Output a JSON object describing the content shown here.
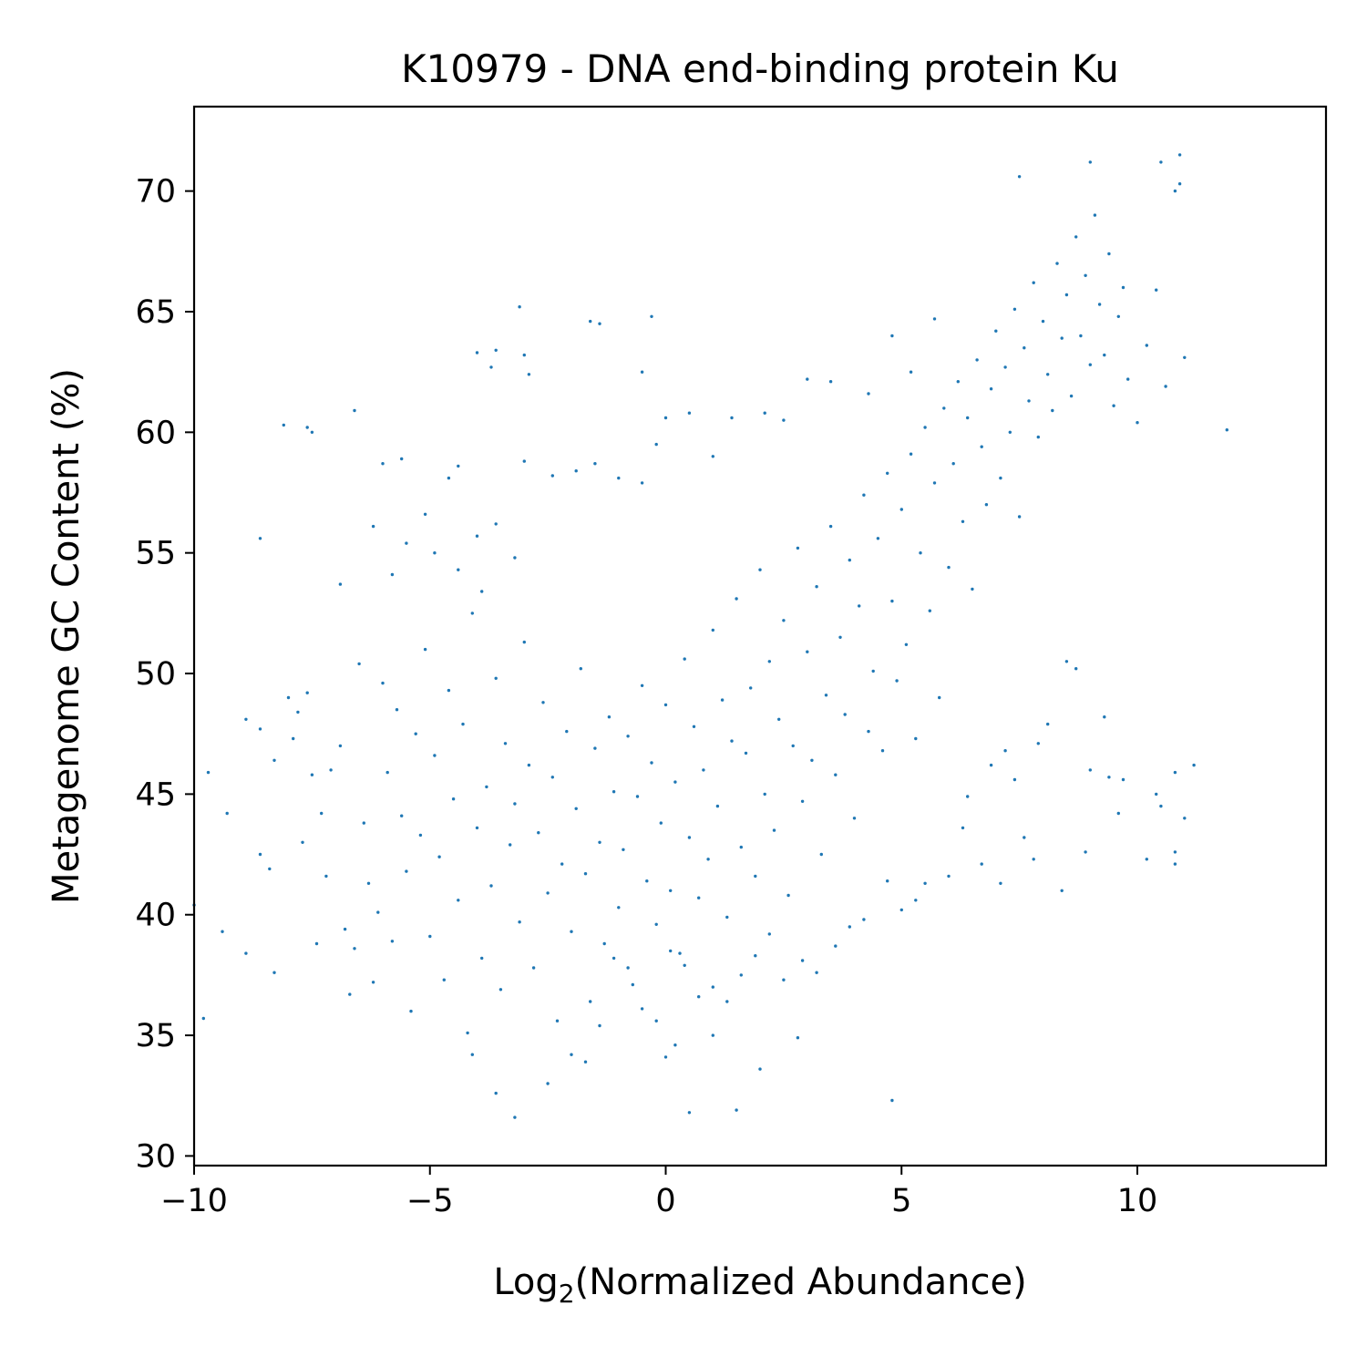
{
  "chart_data": {
    "type": "scatter",
    "title": "K10979 - DNA end-binding protein Ku",
    "xlabel_main": "Log",
    "xlabel_sub": "2",
    "xlabel_rest": "(Normalized Abundance)",
    "ylabel": "Metagenome GC Content (%)",
    "xlim": [
      -10,
      14
    ],
    "ylim": [
      29.6,
      73.5
    ],
    "xticks": [
      -10,
      -5,
      0,
      5,
      10
    ],
    "xtick_labels": [
      "−10",
      "−5",
      "0",
      "5",
      "10"
    ],
    "yticks": [
      30,
      35,
      40,
      45,
      50,
      55,
      60,
      65,
      70
    ],
    "ytick_labels": [
      "30",
      "35",
      "40",
      "45",
      "50",
      "55",
      "60",
      "65",
      "70"
    ],
    "marker_color": "#1f77b4",
    "grid": false,
    "legend": "none",
    "points": [
      [
        -9.8,
        35.7
      ],
      [
        -10.0,
        40.4
      ],
      [
        -9.7,
        45.9
      ],
      [
        -9.4,
        39.3
      ],
      [
        -9.3,
        44.2
      ],
      [
        -8.9,
        38.4
      ],
      [
        -8.9,
        48.1
      ],
      [
        -8.6,
        47.7
      ],
      [
        -8.6,
        42.5
      ],
      [
        -8.4,
        41.9
      ],
      [
        -8.3,
        37.6
      ],
      [
        -8.3,
        46.4
      ],
      [
        -8.0,
        49.0
      ],
      [
        -7.9,
        47.3
      ],
      [
        -7.8,
        48.4
      ],
      [
        -7.7,
        43.0
      ],
      [
        -7.6,
        49.2
      ],
      [
        -7.5,
        45.8
      ],
      [
        -7.4,
        38.8
      ],
      [
        -7.3,
        44.2
      ],
      [
        -7.2,
        41.6
      ],
      [
        -7.1,
        46.0
      ],
      [
        -6.9,
        47.0
      ],
      [
        -6.8,
        39.4
      ],
      [
        -6.7,
        36.7
      ],
      [
        -6.6,
        38.6
      ],
      [
        -6.5,
        50.4
      ],
      [
        -6.4,
        43.8
      ],
      [
        -6.3,
        41.3
      ],
      [
        -6.2,
        37.2
      ],
      [
        -6.1,
        40.1
      ],
      [
        -6.0,
        49.6
      ],
      [
        -5.9,
        45.9
      ],
      [
        -5.8,
        38.9
      ],
      [
        -5.7,
        48.5
      ],
      [
        -5.6,
        44.1
      ],
      [
        -5.5,
        41.8
      ],
      [
        -5.4,
        36.0
      ],
      [
        -5.3,
        47.5
      ],
      [
        -5.2,
        43.3
      ],
      [
        -5.1,
        51.0
      ],
      [
        -5.0,
        39.1
      ],
      [
        -4.9,
        46.6
      ],
      [
        -4.8,
        42.4
      ],
      [
        -4.7,
        37.3
      ],
      [
        -4.6,
        49.3
      ],
      [
        -4.5,
        44.8
      ],
      [
        -4.4,
        40.6
      ],
      [
        -4.3,
        47.9
      ],
      [
        -4.2,
        35.1
      ],
      [
        -4.1,
        52.5
      ],
      [
        -4.0,
        43.6
      ],
      [
        -3.9,
        38.2
      ],
      [
        -3.8,
        45.3
      ],
      [
        -3.7,
        41.2
      ],
      [
        -3.6,
        49.8
      ],
      [
        -3.5,
        36.9
      ],
      [
        -3.4,
        47.1
      ],
      [
        -3.3,
        42.9
      ],
      [
        -3.2,
        44.6
      ],
      [
        -3.1,
        39.7
      ],
      [
        -3.0,
        51.3
      ],
      [
        -2.9,
        46.2
      ],
      [
        -2.8,
        37.8
      ],
      [
        -2.7,
        43.4
      ],
      [
        -2.6,
        48.8
      ],
      [
        -2.5,
        40.9
      ],
      [
        -2.4,
        45.7
      ],
      [
        -2.3,
        35.6
      ],
      [
        -2.2,
        42.1
      ],
      [
        -2.1,
        47.6
      ],
      [
        -2.0,
        39.3
      ],
      [
        -1.9,
        44.4
      ],
      [
        -1.8,
        50.2
      ],
      [
        -1.7,
        41.7
      ],
      [
        -1.6,
        36.4
      ],
      [
        -1.5,
        46.9
      ],
      [
        -1.4,
        43.0
      ],
      [
        -1.3,
        38.8
      ],
      [
        -1.2,
        48.2
      ],
      [
        -1.1,
        45.1
      ],
      [
        -1.0,
        40.3
      ],
      [
        -0.9,
        42.7
      ],
      [
        -0.8,
        47.4
      ],
      [
        -0.7,
        37.1
      ],
      [
        -0.6,
        44.9
      ],
      [
        -0.5,
        49.5
      ],
      [
        -0.4,
        41.4
      ],
      [
        -0.3,
        46.3
      ],
      [
        -0.2,
        39.6
      ],
      [
        -0.1,
        43.8
      ],
      [
        0.0,
        48.7
      ],
      [
        0.1,
        41.0
      ],
      [
        0.2,
        45.5
      ],
      [
        0.3,
        38.4
      ],
      [
        0.4,
        50.6
      ],
      [
        0.5,
        43.2
      ],
      [
        0.6,
        47.8
      ],
      [
        0.7,
        40.7
      ],
      [
        0.8,
        46.0
      ],
      [
        0.9,
        42.3
      ],
      [
        1.0,
        51.8
      ],
      [
        1.1,
        44.5
      ],
      [
        1.2,
        48.9
      ],
      [
        1.3,
        39.9
      ],
      [
        1.4,
        47.2
      ],
      [
        1.5,
        53.1
      ],
      [
        1.6,
        42.8
      ],
      [
        1.7,
        46.7
      ],
      [
        1.8,
        49.4
      ],
      [
        1.9,
        41.6
      ],
      [
        2.0,
        54.3
      ],
      [
        2.1,
        45.0
      ],
      [
        2.2,
        50.5
      ],
      [
        2.3,
        43.5
      ],
      [
        2.4,
        48.1
      ],
      [
        2.5,
        52.2
      ],
      [
        2.6,
        40.8
      ],
      [
        2.7,
        47.0
      ],
      [
        2.8,
        55.2
      ],
      [
        2.9,
        44.7
      ],
      [
        3.0,
        50.9
      ],
      [
        3.1,
        46.4
      ],
      [
        3.2,
        53.6
      ],
      [
        3.3,
        42.5
      ],
      [
        3.4,
        49.1
      ],
      [
        3.5,
        56.1
      ],
      [
        3.6,
        45.8
      ],
      [
        3.7,
        51.5
      ],
      [
        3.8,
        48.3
      ],
      [
        3.9,
        54.7
      ],
      [
        4.0,
        44.0
      ],
      [
        4.1,
        52.8
      ],
      [
        4.2,
        57.4
      ],
      [
        4.3,
        47.6
      ],
      [
        4.4,
        50.1
      ],
      [
        4.5,
        55.6
      ],
      [
        4.6,
        46.8
      ],
      [
        4.7,
        58.3
      ],
      [
        4.8,
        53.0
      ],
      [
        4.9,
        49.7
      ],
      [
        5.0,
        56.8
      ],
      [
        5.1,
        51.2
      ],
      [
        5.2,
        59.1
      ],
      [
        5.3,
        47.3
      ],
      [
        5.4,
        55.0
      ],
      [
        5.5,
        60.2
      ],
      [
        5.6,
        52.6
      ],
      [
        5.7,
        57.9
      ],
      [
        5.8,
        49.0
      ],
      [
        5.9,
        61.0
      ],
      [
        6.0,
        54.4
      ],
      [
        6.1,
        58.7
      ],
      [
        6.2,
        62.1
      ],
      [
        6.3,
        56.3
      ],
      [
        6.4,
        60.6
      ],
      [
        6.5,
        53.5
      ],
      [
        6.6,
        63.0
      ],
      [
        6.7,
        59.4
      ],
      [
        6.8,
        57.0
      ],
      [
        6.9,
        61.8
      ],
      [
        7.0,
        64.2
      ],
      [
        7.1,
        58.1
      ],
      [
        7.2,
        62.7
      ],
      [
        7.3,
        60.0
      ],
      [
        7.4,
        65.1
      ],
      [
        7.5,
        56.5
      ],
      [
        7.6,
        63.5
      ],
      [
        7.7,
        61.3
      ],
      [
        7.8,
        66.2
      ],
      [
        7.9,
        59.8
      ],
      [
        8.0,
        64.6
      ],
      [
        8.1,
        62.4
      ],
      [
        8.2,
        60.9
      ],
      [
        8.3,
        67.0
      ],
      [
        8.4,
        63.9
      ],
      [
        8.5,
        65.7
      ],
      [
        8.6,
        61.5
      ],
      [
        8.7,
        68.1
      ],
      [
        8.8,
        64.0
      ],
      [
        8.9,
        66.5
      ],
      [
        9.0,
        62.8
      ],
      [
        9.1,
        69.0
      ],
      [
        9.2,
        65.3
      ],
      [
        9.3,
        63.2
      ],
      [
        9.4,
        67.4
      ],
      [
        9.5,
        61.1
      ],
      [
        9.6,
        64.8
      ],
      [
        9.7,
        66.0
      ],
      [
        9.8,
        62.2
      ],
      [
        10.0,
        60.4
      ],
      [
        10.2,
        63.6
      ],
      [
        10.4,
        65.9
      ],
      [
        10.6,
        61.9
      ],
      [
        10.8,
        70.0
      ],
      [
        10.9,
        71.5
      ],
      [
        11.0,
        63.1
      ],
      [
        11.2,
        46.2
      ],
      [
        11.9,
        60.1
      ],
      [
        10.8,
        45.9
      ],
      [
        10.8,
        42.6
      ],
      [
        10.8,
        42.1
      ],
      [
        10.2,
        42.3
      ],
      [
        9.6,
        44.2
      ],
      [
        9.4,
        45.7
      ],
      [
        9.0,
        46.0
      ],
      [
        8.9,
        42.6
      ],
      [
        8.4,
        41.0
      ],
      [
        7.8,
        42.3
      ],
      [
        7.6,
        43.2
      ],
      [
        7.9,
        47.1
      ],
      [
        8.1,
        47.9
      ],
      [
        8.5,
        50.5
      ],
      [
        8.7,
        50.2
      ],
      [
        9.3,
        48.2
      ],
      [
        9.7,
        45.6
      ],
      [
        10.4,
        45.0
      ],
      [
        10.5,
        44.5
      ],
      [
        11.0,
        44.0
      ],
      [
        7.4,
        45.6
      ],
      [
        7.2,
        46.8
      ],
      [
        6.9,
        46.2
      ],
      [
        6.4,
        44.9
      ],
      [
        6.3,
        43.6
      ],
      [
        6.7,
        42.1
      ],
      [
        7.1,
        41.3
      ],
      [
        6.0,
        41.6
      ],
      [
        5.5,
        41.3
      ],
      [
        5.3,
        40.6
      ],
      [
        5.0,
        40.2
      ],
      [
        4.7,
        41.4
      ],
      [
        4.2,
        39.8
      ],
      [
        3.9,
        39.5
      ],
      [
        3.6,
        38.7
      ],
      [
        3.2,
        37.6
      ],
      [
        2.9,
        38.1
      ],
      [
        2.5,
        37.3
      ],
      [
        2.2,
        39.2
      ],
      [
        1.9,
        38.3
      ],
      [
        1.6,
        37.5
      ],
      [
        1.3,
        36.4
      ],
      [
        1.0,
        37.0
      ],
      [
        0.7,
        36.6
      ],
      [
        0.4,
        37.9
      ],
      [
        0.1,
        38.5
      ],
      [
        -0.2,
        35.6
      ],
      [
        -0.5,
        36.1
      ],
      [
        -0.8,
        37.8
      ],
      [
        -1.1,
        38.2
      ],
      [
        -1.4,
        35.4
      ],
      [
        -1.7,
        33.9
      ],
      [
        -2.0,
        34.2
      ],
      [
        -2.5,
        33.0
      ],
      [
        -3.2,
        31.6
      ],
      [
        -3.6,
        32.6
      ],
      [
        -4.1,
        34.2
      ],
      [
        0.0,
        34.1
      ],
      [
        0.5,
        31.8
      ],
      [
        1.5,
        31.9
      ],
      [
        2.0,
        33.6
      ],
      [
        4.8,
        32.3
      ],
      [
        2.8,
        34.9
      ],
      [
        1.0,
        35.0
      ],
      [
        0.2,
        34.6
      ],
      [
        -7.6,
        60.2
      ],
      [
        -7.5,
        60.0
      ],
      [
        -8.1,
        60.3
      ],
      [
        -6.6,
        60.9
      ],
      [
        -6.0,
        58.7
      ],
      [
        -5.6,
        58.9
      ],
      [
        -4.4,
        58.6
      ],
      [
        -4.6,
        58.1
      ],
      [
        -4.0,
        55.7
      ],
      [
        -3.6,
        56.2
      ],
      [
        -5.1,
        56.6
      ],
      [
        -6.2,
        56.1
      ],
      [
        -8.6,
        55.6
      ],
      [
        -5.5,
        55.4
      ],
      [
        -4.9,
        55.0
      ],
      [
        -4.4,
        54.3
      ],
      [
        -3.9,
        53.4
      ],
      [
        -3.2,
        54.8
      ],
      [
        -6.9,
        53.7
      ],
      [
        -5.8,
        54.1
      ],
      [
        -3.6,
        63.4
      ],
      [
        -3.7,
        62.7
      ],
      [
        -3.0,
        63.2
      ],
      [
        -2.9,
        62.4
      ],
      [
        -4.0,
        63.3
      ],
      [
        -3.1,
        65.2
      ],
      [
        -1.6,
        64.6
      ],
      [
        -1.4,
        64.5
      ],
      [
        -0.3,
        64.8
      ],
      [
        -0.5,
        62.5
      ],
      [
        -3.0,
        58.8
      ],
      [
        -2.4,
        58.2
      ],
      [
        -1.9,
        58.4
      ],
      [
        -1.5,
        58.7
      ],
      [
        -1.0,
        58.1
      ],
      [
        -0.5,
        57.9
      ],
      [
        0.0,
        60.6
      ],
      [
        -0.2,
        59.5
      ],
      [
        0.5,
        60.8
      ],
      [
        1.0,
        59.0
      ],
      [
        1.4,
        60.6
      ],
      [
        2.1,
        60.8
      ],
      [
        2.5,
        60.5
      ],
      [
        3.0,
        62.2
      ],
      [
        3.5,
        62.1
      ],
      [
        4.3,
        61.6
      ],
      [
        4.8,
        64.0
      ],
      [
        5.2,
        62.5
      ],
      [
        5.7,
        64.7
      ],
      [
        7.5,
        70.6
      ],
      [
        9.0,
        71.2
      ],
      [
        10.5,
        71.2
      ],
      [
        10.9,
        70.3
      ]
    ]
  }
}
